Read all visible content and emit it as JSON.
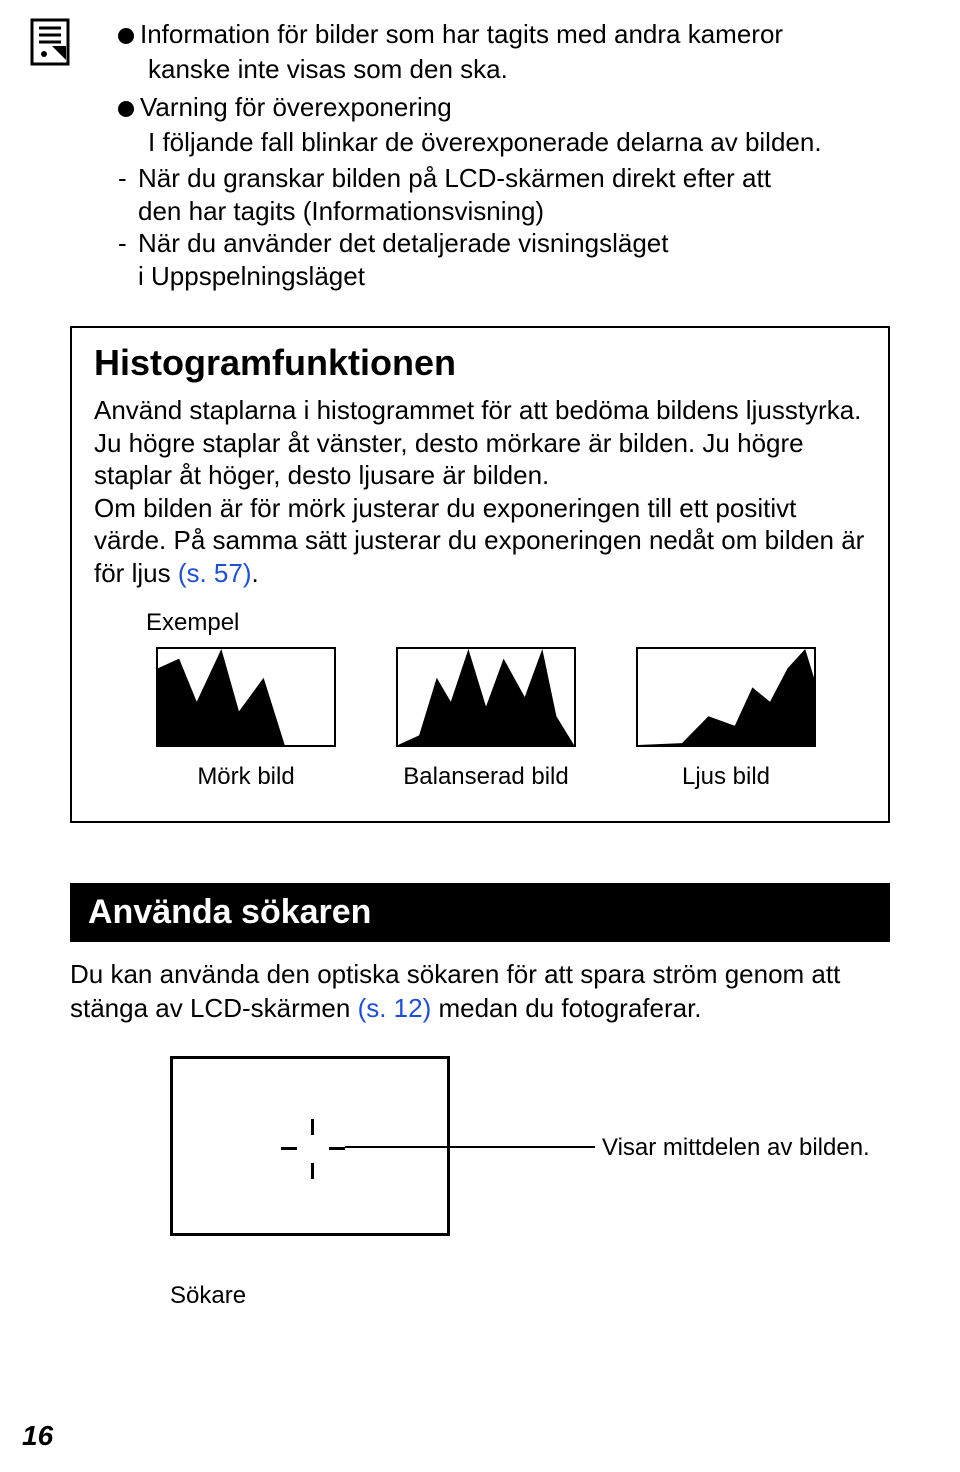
{
  "colors": {
    "text": "#000000",
    "background": "#ffffff",
    "link": "#1d4fd7",
    "bar_bg": "#000000",
    "bar_fg": "#ffffff"
  },
  "top": {
    "b1_line1": "Information för bilder som har tagits med andra kameror",
    "b1_line2": "kanske inte visas som den ska.",
    "b2": "Varning för överexponering",
    "b2_sub": "I följande fall blinkar de överexponerade delarna av bilden.",
    "d1_l1": "När du granskar bilden på LCD-skärmen direkt efter att",
    "d1_l2": "den har tagits (Informationsvisning)",
    "d2_l1": "När du använder det detaljerade visningsläget",
    "d2_l2": "i Uppspelningsläget"
  },
  "histogram": {
    "title": "Histogramfunktionen",
    "body_part1": "Använd staplarna i histogrammet för att bedöma bildens ljusstyrka. Ju högre staplar åt vänster, desto mörkare är bilden. Ju högre staplar åt höger, desto ljusare är bilden.",
    "body_part2a": "Om bilden är för mörk justerar du exponeringen till ett positivt värde. På samma sätt justerar du exponeringen nedåt om bilden är för ljus ",
    "ref": "(s. 57)",
    "body_part2b": ".",
    "example_label": "Exempel",
    "items": [
      {
        "caption": "Mörk bild",
        "poly": "0,20 12,10 22,55 36,0 46,65 60,30 72,100 100,100 100,100 0,100"
      },
      {
        "caption": "Balanserad bild",
        "poly": "0,100 12,90 22,30 30,55 40,0 50,60 60,10 72,50 82,0 90,70 100,100 0,100"
      },
      {
        "caption": "Ljus bild",
        "poly": "0,100 25,98 40,70 55,80 65,40 75,55 85,20 95,0 100,30 100,100 0,100"
      }
    ]
  },
  "section": {
    "title": "Använda sökaren",
    "body_a": "Du kan använda den optiska sökaren för att spara ström genom att stänga av LCD-skärmen ",
    "ref": "(s. 12)",
    "body_b": " medan du fotograferar."
  },
  "viewfinder": {
    "callout": "Visar mittdelen av bilden.",
    "caption": "Sökare"
  },
  "page_number": "16"
}
